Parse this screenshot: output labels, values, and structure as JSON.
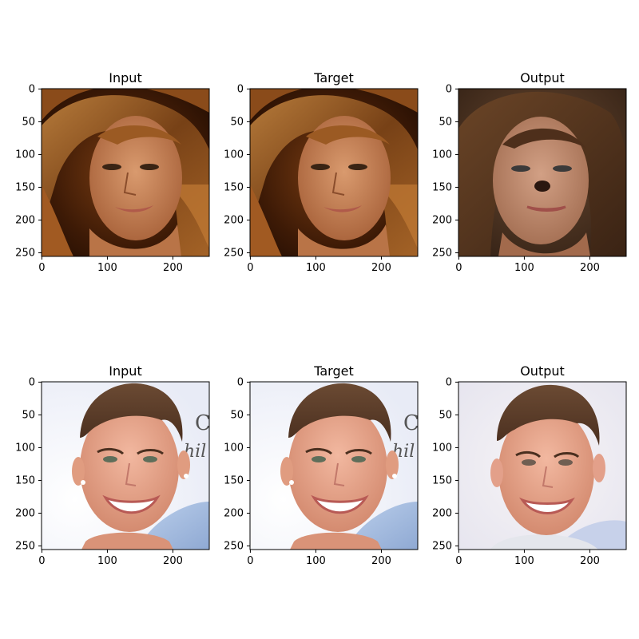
{
  "figure": {
    "panels": [
      {
        "title": "Input",
        "image": "long-brown-haired-woman-face-photo",
        "x_ticks": [
          "0",
          "100",
          "200"
        ],
        "y_ticks": [
          "0",
          "50",
          "100",
          "150",
          "200",
          "250"
        ]
      },
      {
        "title": "Target",
        "image": "long-brown-haired-woman-face-photo",
        "x_ticks": [
          "0",
          "100",
          "200"
        ],
        "y_ticks": [
          "0",
          "50",
          "100",
          "150",
          "200",
          "250"
        ]
      },
      {
        "title": "Output",
        "image": "generated-woman-face",
        "x_ticks": [
          "0",
          "100",
          "200"
        ],
        "y_ticks": [
          "0",
          "50",
          "100",
          "150",
          "200",
          "250"
        ]
      },
      {
        "title": "Input",
        "image": "smiling-young-man-short-hair-photo",
        "x_ticks": [
          "0",
          "100",
          "200"
        ],
        "y_ticks": [
          "0",
          "50",
          "100",
          "150",
          "200",
          "250"
        ]
      },
      {
        "title": "Target",
        "image": "smiling-young-man-short-hair-photo",
        "x_ticks": [
          "0",
          "100",
          "200"
        ],
        "y_ticks": [
          "0",
          "50",
          "100",
          "150",
          "200",
          "250"
        ]
      },
      {
        "title": "Output",
        "image": "generated-smiling-man-face",
        "x_ticks": [
          "0",
          "100",
          "200"
        ],
        "y_ticks": [
          "0",
          "50",
          "100",
          "150",
          "200",
          "250"
        ]
      }
    ],
    "background_text": {
      "row2_col1": [
        "C",
        "hil"
      ],
      "row2_col2": [
        "C",
        "hil"
      ]
    }
  }
}
